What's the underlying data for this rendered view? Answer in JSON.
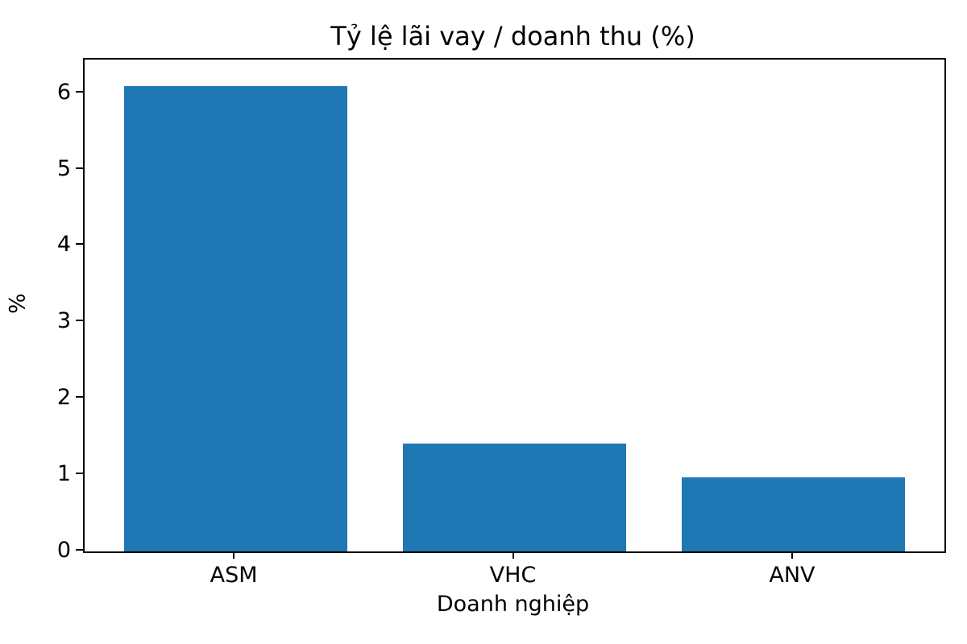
{
  "chart_data": {
    "type": "bar",
    "title": "Tỷ lệ lãi vay / doanh thu (%)",
    "xlabel": "Doanh nghiệp",
    "ylabel": "%",
    "categories": [
      "ASM",
      "VHC",
      "ANV"
    ],
    "values": [
      6.09,
      1.41,
      0.97
    ],
    "yticks": [
      0,
      1,
      2,
      3,
      4,
      5,
      6
    ],
    "ylim": [
      0,
      6.44
    ],
    "bar_color": "#1f77b4",
    "bar_width_fraction": 0.8,
    "background_color": "#ffffff",
    "axis_color": "#000000",
    "grid": false,
    "legend": null
  }
}
